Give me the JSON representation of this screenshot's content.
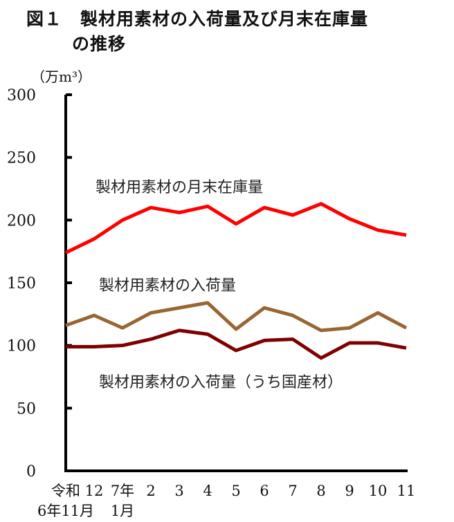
{
  "title": {
    "line1": "図１　製材用素材の入荷量及び月末在庫量",
    "line2": "の推移"
  },
  "chart_data": {
    "type": "line",
    "ylabel": "（万m³）",
    "ylim": [
      0,
      300
    ],
    "yticks": [
      0,
      50,
      100,
      150,
      200,
      250,
      300
    ],
    "grid": false,
    "categories": [
      "令和6年11月",
      "12",
      "7年1月",
      "2",
      "3",
      "4",
      "5",
      "6",
      "7",
      "8",
      "9",
      "10",
      "11"
    ],
    "xtick_labels": [
      {
        "top": "令和",
        "bottom": "6年11月"
      },
      {
        "top": "12",
        "bottom": ""
      },
      {
        "top": "7年",
        "bottom": "1月"
      },
      {
        "top": "2",
        "bottom": ""
      },
      {
        "top": "3",
        "bottom": ""
      },
      {
        "top": "4",
        "bottom": ""
      },
      {
        "top": "5",
        "bottom": ""
      },
      {
        "top": "6",
        "bottom": ""
      },
      {
        "top": "7",
        "bottom": ""
      },
      {
        "top": "8",
        "bottom": ""
      },
      {
        "top": "9",
        "bottom": ""
      },
      {
        "top": "10",
        "bottom": ""
      },
      {
        "top": "11",
        "bottom": ""
      }
    ],
    "series": [
      {
        "name": "製材用素材の月末在庫量",
        "color": "#ff0000",
        "values": [
          174,
          185,
          200,
          210,
          206,
          211,
          197,
          210,
          204,
          213,
          201,
          192,
          188
        ]
      },
      {
        "name": "製材用素材の入荷量",
        "color": "#996633",
        "values": [
          116,
          124,
          114,
          126,
          130,
          134,
          113,
          130,
          124,
          112,
          114,
          126,
          114
        ]
      },
      {
        "name": "製材用素材の入荷量（うち国産材）",
        "color": "#800000",
        "values": [
          99,
          99,
          100,
          105,
          112,
          109,
          96,
          104,
          105,
          90,
          102,
          102,
          98
        ]
      }
    ]
  }
}
